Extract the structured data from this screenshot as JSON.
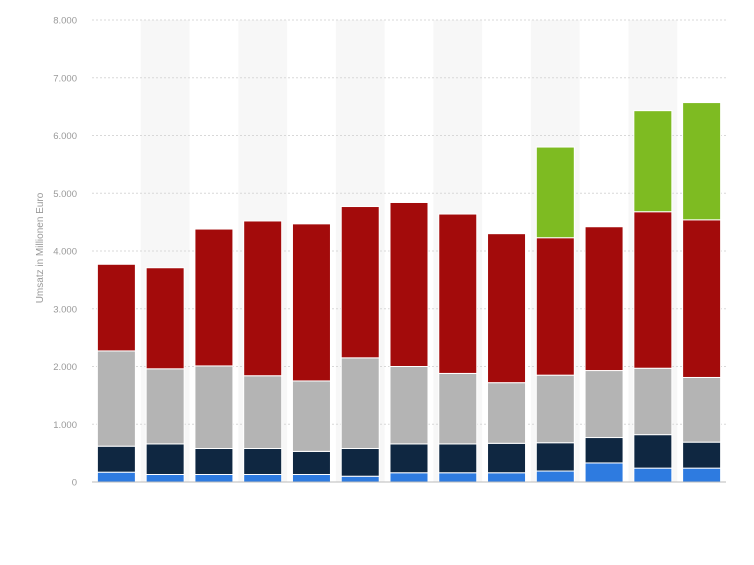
{
  "chart_data": {
    "type": "bar",
    "stacked": true,
    "title": "",
    "xlabel": "",
    "ylabel": "Umsatz in Millionen Euro",
    "ylim": [
      0,
      8000
    ],
    "grid": true,
    "legend": "none",
    "y_ticks": [
      {
        "value": 0,
        "label": "0"
      },
      {
        "value": 1000,
        "label": "1.000"
      },
      {
        "value": 2000,
        "label": "2.000"
      },
      {
        "value": 3000,
        "label": "3.000"
      },
      {
        "value": 4000,
        "label": "4.000"
      },
      {
        "value": 5000,
        "label": "5.000"
      },
      {
        "value": 6000,
        "label": "6.000"
      },
      {
        "value": 7000,
        "label": "7.000"
      },
      {
        "value": 8000,
        "label": "8.000"
      }
    ],
    "bar_count": 13,
    "series": [
      {
        "color": "#2e7be0",
        "values": [
          170,
          130,
          130,
          130,
          130,
          100,
          160,
          160,
          160,
          190,
          330,
          240,
          240
        ]
      },
      {
        "color": "#0f2741",
        "values": [
          450,
          530,
          450,
          450,
          400,
          480,
          500,
          500,
          510,
          490,
          440,
          580,
          450
        ]
      },
      {
        "color": "#b4b4b4",
        "values": [
          1650,
          1300,
          1430,
          1260,
          1220,
          1570,
          1340,
          1220,
          1050,
          1170,
          1160,
          1150,
          1120
        ]
      },
      {
        "color": "#a30b0b",
        "values": [
          1500,
          1750,
          2370,
          2680,
          2720,
          2620,
          2840,
          2760,
          2580,
          2380,
          2490,
          2710,
          2730
        ]
      },
      {
        "color": "#7ebb22",
        "values": [
          0,
          0,
          0,
          0,
          0,
          0,
          0,
          0,
          0,
          1570,
          0,
          1750,
          2030
        ]
      }
    ]
  },
  "colors": {
    "grid": "#d8d8d8",
    "band": "#f7f7f7",
    "axis_text": "#999999"
  }
}
